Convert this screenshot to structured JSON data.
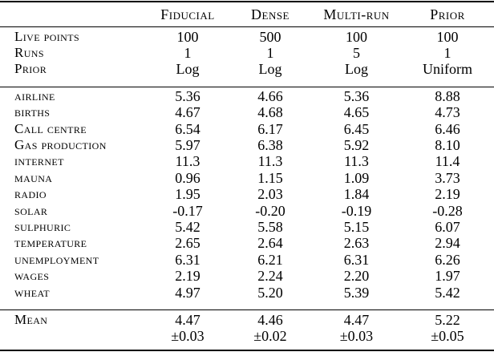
{
  "page": {
    "background_color": "#ffffff",
    "text_color": "#000000",
    "rule_color": "#000000"
  },
  "table": {
    "columns": [
      "Fiducial",
      "Dense",
      "Multi-run",
      "Prior"
    ],
    "config_rows": [
      {
        "label": "Live points",
        "values": [
          "100",
          "500",
          "100",
          "100"
        ]
      },
      {
        "label": "Runs",
        "values": [
          "1",
          "1",
          "5",
          "1"
        ]
      },
      {
        "label": "Prior",
        "values": [
          "Log",
          "Log",
          "Log",
          "Uniform"
        ]
      }
    ],
    "data_rows": [
      {
        "label": "airline",
        "values": [
          "5.36",
          "4.66",
          "5.36",
          "8.88"
        ]
      },
      {
        "label": "births",
        "values": [
          "4.67",
          "4.68",
          "4.65",
          "4.73"
        ]
      },
      {
        "label": "Call centre",
        "values": [
          "6.54",
          "6.17",
          "6.45",
          "6.46"
        ]
      },
      {
        "label": "Gas production",
        "values": [
          "5.97",
          "6.38",
          "5.92",
          "8.10"
        ]
      },
      {
        "label": "internet",
        "values": [
          "11.3",
          "11.3",
          "11.3",
          "11.4"
        ]
      },
      {
        "label": "mauna",
        "values": [
          "0.96",
          "1.15",
          "1.09",
          "3.73"
        ]
      },
      {
        "label": "radio",
        "values": [
          "1.95",
          "2.03",
          "1.84",
          "2.19"
        ]
      },
      {
        "label": "solar",
        "values": [
          "-0.17",
          "-0.20",
          "-0.19",
          "-0.28"
        ]
      },
      {
        "label": "sulphuric",
        "values": [
          "5.42",
          "5.58",
          "5.15",
          "6.07"
        ]
      },
      {
        "label": "temperature",
        "values": [
          "2.65",
          "2.64",
          "2.63",
          "2.94"
        ]
      },
      {
        "label": "unemployment",
        "values": [
          "6.31",
          "6.21",
          "6.31",
          "6.26"
        ]
      },
      {
        "label": "wages",
        "values": [
          "2.19",
          "2.24",
          "2.20",
          "1.97"
        ]
      },
      {
        "label": "wheat",
        "values": [
          "4.97",
          "5.20",
          "5.39",
          "5.42"
        ]
      }
    ],
    "summary_row": {
      "label": "Mean",
      "values": [
        "4.47",
        "4.46",
        "4.47",
        "5.22"
      ],
      "errors": [
        "±0.03",
        "±0.02",
        "±0.03",
        "±0.05"
      ]
    }
  }
}
